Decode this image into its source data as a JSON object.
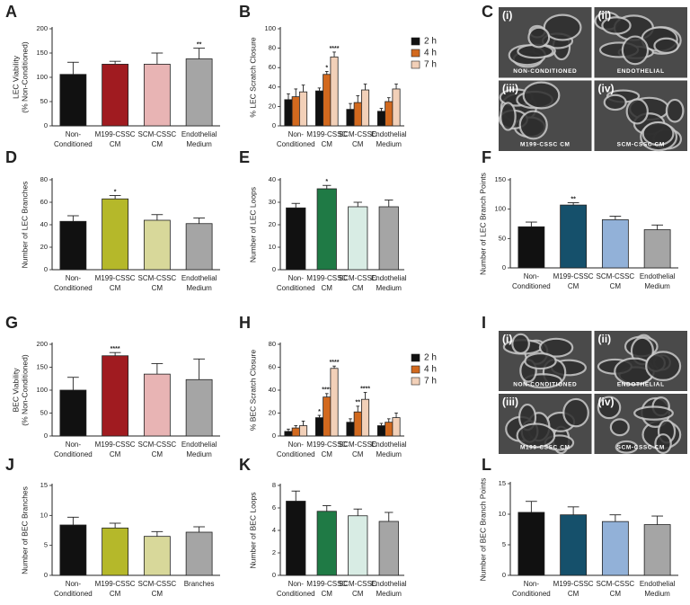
{
  "chart_data": [
    {
      "type": "bar",
      "panel": "A",
      "ylabel": [
        "LEC Viability",
        "(% Non-Conditioned)"
      ],
      "categories": [
        [
          "Non-",
          "Conditioned"
        ],
        [
          "M199-CSSC",
          "CM"
        ],
        [
          "SCM-CSSC",
          "CM"
        ],
        [
          "Endothelial",
          "Medium"
        ]
      ],
      "values": [
        106,
        127,
        127,
        138
      ],
      "errors": [
        25,
        6,
        23,
        22
      ],
      "colors": [
        "#111111",
        "#a01b20",
        "#e8b4b4",
        "#a5a5a5"
      ],
      "annotations": [
        null,
        null,
        null,
        "**"
      ],
      "ylim": [
        0,
        200
      ],
      "yticks": [
        0,
        50,
        100,
        150,
        200
      ]
    },
    {
      "type": "bar",
      "panel": "B",
      "ylabel": [
        "% LEC Scratch Closure"
      ],
      "categories": [
        [
          "Non-",
          "Conditioned"
        ],
        [
          "M199-CSSC",
          "CM"
        ],
        [
          "SCM-CSSC",
          "CM"
        ],
        [
          "Endothelial",
          "Medium"
        ]
      ],
      "series": [
        {
          "name": "2 h",
          "color": "#111111",
          "values": [
            27,
            36,
            17,
            15
          ],
          "errors": [
            6,
            3,
            6,
            3
          ],
          "annotations": [
            null,
            null,
            null,
            null
          ]
        },
        {
          "name": "4 h",
          "color": "#d2691e",
          "values": [
            30,
            53,
            24,
            25
          ],
          "errors": [
            8,
            3,
            7,
            4
          ],
          "annotations": [
            null,
            "*",
            null,
            null
          ]
        },
        {
          "name": "7 h",
          "color": "#f2d0b8",
          "values": [
            35,
            71,
            37,
            38
          ],
          "errors": [
            7,
            5,
            6,
            5
          ],
          "annotations": [
            null,
            "****",
            null,
            null
          ]
        }
      ],
      "ylim": [
        0,
        100
      ],
      "yticks": [
        0,
        20,
        40,
        60,
        80,
        100
      ]
    },
    {
      "type": "bar",
      "panel": "D",
      "ylabel": [
        "Number of LEC Branches"
      ],
      "categories": [
        [
          "Non-",
          "Conditioned"
        ],
        [
          "M199-CSSC",
          "CM"
        ],
        [
          "SCM-CSSC",
          "CM"
        ],
        [
          "Endothelial",
          "Medium"
        ]
      ],
      "values": [
        43,
        63,
        44,
        41
      ],
      "errors": [
        5,
        3,
        5,
        5
      ],
      "colors": [
        "#111111",
        "#b5b82a",
        "#d8d89a",
        "#a5a5a5"
      ],
      "annotations": [
        null,
        "*",
        null,
        null
      ],
      "ylim": [
        0,
        80
      ],
      "yticks": [
        0,
        20,
        40,
        60,
        80
      ]
    },
    {
      "type": "bar",
      "panel": "E",
      "ylabel": [
        "Number of LEC Loops"
      ],
      "categories": [
        [
          "Non-",
          "Conditioned"
        ],
        [
          "M199-CSSC",
          "CM"
        ],
        [
          "SCM-CSSC",
          "CM"
        ],
        [
          "Endothelial",
          "Medium"
        ]
      ],
      "values": [
        27.5,
        36,
        28,
        28
      ],
      "errors": [
        2,
        1.5,
        2,
        3
      ],
      "colors": [
        "#111111",
        "#1f7a45",
        "#d8ece4",
        "#a5a5a5"
      ],
      "annotations": [
        null,
        "*",
        null,
        null
      ],
      "ylim": [
        0,
        40
      ],
      "yticks": [
        0,
        10,
        20,
        30,
        40
      ]
    },
    {
      "type": "bar",
      "panel": "F",
      "ylabel": [
        "Number of LEC Branch Points"
      ],
      "categories": [
        [
          "Non-",
          "Conditioned"
        ],
        [
          "M199-CSSC",
          "CM"
        ],
        [
          "SCM-CSSC",
          "CM"
        ],
        [
          "Endothelial",
          "Medium"
        ]
      ],
      "values": [
        70,
        107,
        82,
        65
      ],
      "errors": [
        8,
        4,
        6,
        8
      ],
      "colors": [
        "#111111",
        "#15506b",
        "#92b1d8",
        "#a5a5a5"
      ],
      "annotations": [
        null,
        "**",
        null,
        null
      ],
      "ylim": [
        0,
        150
      ],
      "yticks": [
        0,
        50,
        100,
        150
      ]
    },
    {
      "type": "bar",
      "panel": "G",
      "ylabel": [
        "BEC Viability",
        "(% Non-Conditioned)"
      ],
      "categories": [
        [
          "Non-",
          "Conditioned"
        ],
        [
          "M199-CSSC",
          "CM"
        ],
        [
          "SCM-CSSC",
          "CM"
        ],
        [
          "Endothelial",
          "Medium"
        ]
      ],
      "values": [
        100,
        175,
        135,
        123
      ],
      "errors": [
        28,
        7,
        23,
        45
      ],
      "colors": [
        "#111111",
        "#a01b20",
        "#e8b4b4",
        "#a5a5a5"
      ],
      "annotations": [
        null,
        "****",
        null,
        null
      ],
      "ylim": [
        0,
        200
      ],
      "yticks": [
        0,
        50,
        100,
        150,
        200
      ]
    },
    {
      "type": "bar",
      "panel": "H",
      "ylabel": [
        "% BEC Scratch Closure"
      ],
      "categories": [
        [
          "Non-",
          "Conditioned"
        ],
        [
          "M199-CSSC",
          "CM"
        ],
        [
          "SCM-CSSC",
          "CM"
        ],
        [
          "Endothelial",
          "Medium"
        ]
      ],
      "series": [
        {
          "name": "2 h",
          "color": "#111111",
          "values": [
            4,
            16,
            12,
            9
          ],
          "errors": [
            2,
            2,
            3,
            2
          ],
          "annotations": [
            null,
            "*",
            null,
            null
          ]
        },
        {
          "name": "4 h",
          "color": "#d2691e",
          "values": [
            7,
            34,
            21,
            12
          ],
          "errors": [
            2,
            3,
            5,
            3
          ],
          "annotations": [
            null,
            "****",
            "**",
            null
          ]
        },
        {
          "name": "7 h",
          "color": "#f2d0b8",
          "values": [
            9,
            59,
            32,
            16
          ],
          "errors": [
            4,
            2,
            6,
            4
          ],
          "annotations": [
            null,
            "****",
            "****",
            null
          ]
        }
      ],
      "ylim": [
        0,
        80
      ],
      "yticks": [
        0,
        20,
        40,
        60,
        80
      ]
    },
    {
      "type": "bar",
      "panel": "J",
      "ylabel": [
        "Number of BEC Branches"
      ],
      "categories": [
        [
          "Non-",
          "Conditioned"
        ],
        [
          "M199-CSSC",
          "CM"
        ],
        [
          "SCM-CSSC",
          "CM"
        ],
        [
          "Branches"
        ]
      ],
      "values": [
        8.4,
        7.9,
        6.5,
        7.2
      ],
      "errors": [
        1.3,
        0.8,
        0.8,
        0.9
      ],
      "colors": [
        "#111111",
        "#b5b82a",
        "#d8d89a",
        "#a5a5a5"
      ],
      "annotations": [
        null,
        null,
        null,
        null
      ],
      "ylim": [
        0,
        15
      ],
      "yticks": [
        0,
        5,
        10,
        15
      ]
    },
    {
      "type": "bar",
      "panel": "K",
      "ylabel": [
        "Number of BEC Loops"
      ],
      "categories": [
        [
          "Non-",
          "Conditioned"
        ],
        [
          "M199-CSSC",
          "CM"
        ],
        [
          "SCM-CSSC",
          "CM"
        ],
        [
          "Endothelial",
          "Medium"
        ]
      ],
      "values": [
        6.6,
        5.7,
        5.3,
        4.8
      ],
      "errors": [
        0.9,
        0.5,
        0.6,
        0.8
      ],
      "colors": [
        "#111111",
        "#1f7a45",
        "#d8ece4",
        "#a5a5a5"
      ],
      "annotations": [
        null,
        null,
        null,
        null
      ],
      "ylim": [
        0,
        8
      ],
      "yticks": [
        0,
        2,
        4,
        6,
        8
      ]
    },
    {
      "type": "bar",
      "panel": "L",
      "ylabel": [
        "Number of BEC Branch Points"
      ],
      "categories": [
        [
          "Non-",
          "Conditioned"
        ],
        [
          "M199-CSSC",
          "CM"
        ],
        [
          "SCM-CSSC",
          "CM"
        ],
        [
          "Endothelial",
          "Medium"
        ]
      ],
      "values": [
        10.3,
        9.9,
        8.8,
        8.3
      ],
      "errors": [
        1.8,
        1.3,
        1.1,
        1.4
      ],
      "colors": [
        "#111111",
        "#15506b",
        "#92b1d8",
        "#a5a5a5"
      ],
      "annotations": [
        null,
        null,
        null,
        null
      ],
      "ylim": [
        0,
        15
      ],
      "yticks": [
        0,
        5,
        10,
        15
      ]
    }
  ],
  "micrographs": [
    {
      "panel": "C",
      "tiles": [
        {
          "numeral": "(i)",
          "caption": "NON-CONDITIONED"
        },
        {
          "numeral": "(ii)",
          "caption": "ENDOTHELIAL"
        },
        {
          "numeral": "(iii)",
          "caption": "M199-CSSC CM"
        },
        {
          "numeral": "(iv)",
          "caption": "SCM-CSSC CM"
        }
      ]
    },
    {
      "panel": "I",
      "tiles": [
        {
          "numeral": "(i)",
          "caption": "NON-CONDITIONED"
        },
        {
          "numeral": "(ii)",
          "caption": "ENDOTHELIAL"
        },
        {
          "numeral": "(iii)",
          "caption": "M199-CSSC CM"
        },
        {
          "numeral": "(iv)",
          "caption": "SCM-CSSC CM"
        }
      ]
    }
  ]
}
